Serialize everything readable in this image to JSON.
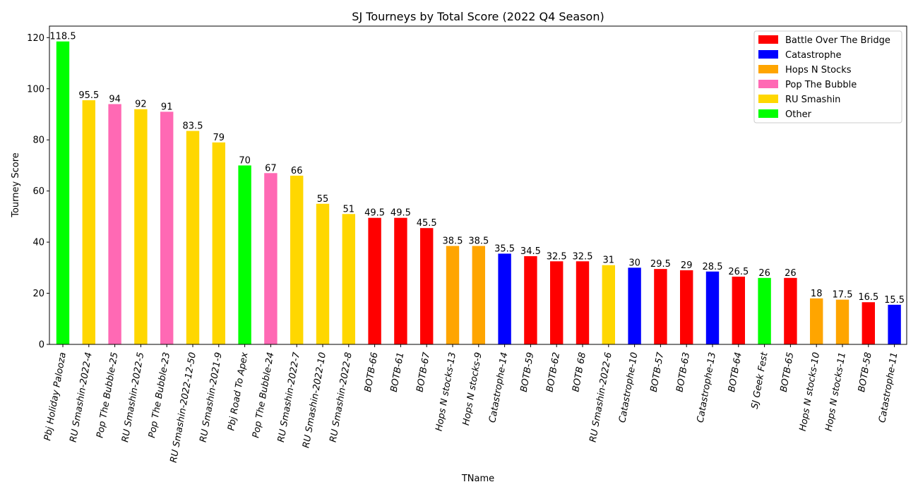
{
  "chart_data": {
    "type": "bar",
    "title": "SJ Tourneys by Total Score (2022 Q4 Season)",
    "xlabel": "TName",
    "ylabel": "Tourney Score",
    "ylim": [
      0,
      124.5
    ],
    "yticks": [
      0,
      20,
      40,
      60,
      80,
      100,
      120
    ],
    "grid": false,
    "legend_placement": "top-right",
    "series_colors": {
      "Battle Over The Bridge": "#ff0000",
      "Catastrophe": "#0000ff",
      "Hops N Stocks": "#ffa500",
      "Pop The Bubble": "#ff69b4",
      "RU Smashin": "#ffd700",
      "Other": "#00ff00"
    },
    "legend": [
      "Battle Over The Bridge",
      "Catastrophe",
      "Hops N Stocks",
      "Pop The Bubble",
      "RU Smashin",
      "Other"
    ],
    "categories": [
      "Pbj Holiday Palooza",
      "RU Smashin-2022-4",
      "Pop The Bubble-25",
      "RU Smashin-2022-5",
      "Pop The Bubble-23",
      "RU Smashin-2022-12-50",
      "RU Smashin-2021-9",
      "Pbj Road To Apex",
      "Pop The Bubble-24",
      "RU Smashin-2022-7",
      "RU Smashin-2022-10",
      "RU Smashin-2022-8",
      "BOTB-66",
      "BOTB-61",
      "BOTB-67",
      "Hops N stocks-13",
      "Hops N stocks-9",
      "Catastrophe-14",
      "BOTB-59",
      "BOTB-62",
      "BOTB 68",
      "RU Smashin-2022-6",
      "Catastrophe-10",
      "BOTB-57",
      "BOTB-63",
      "Catastrophe-13",
      "BOTB-64",
      "SJ Geek Fest",
      "BOTB-65",
      "Hops N stocks-10",
      "Hops N stocks-11",
      "BOTB-58",
      "Catastrophe-11"
    ],
    "values": [
      118.5,
      95.5,
      94,
      92,
      91,
      83.5,
      79,
      70,
      67,
      66,
      55,
      51,
      49.5,
      49.5,
      45.5,
      38.5,
      38.5,
      35.5,
      34.5,
      32.5,
      32.5,
      31,
      30,
      29.5,
      29,
      28.5,
      26.5,
      26,
      26,
      18,
      17.5,
      16.5,
      15.5
    ],
    "value_labels": [
      "118.5",
      "95.5",
      "94",
      "92",
      "91",
      "83.5",
      "79",
      "70",
      "67",
      "66",
      "55",
      "51",
      "49.5",
      "49.5",
      "45.5",
      "38.5",
      "38.5",
      "35.5",
      "34.5",
      "32.5",
      "32.5",
      "31",
      "30",
      "29.5",
      "29",
      "28.5",
      "26.5",
      "26",
      "26",
      "18",
      "17.5",
      "16.5",
      "15.5"
    ],
    "groups": [
      "Other",
      "RU Smashin",
      "Pop The Bubble",
      "RU Smashin",
      "Pop The Bubble",
      "RU Smashin",
      "RU Smashin",
      "Other",
      "Pop The Bubble",
      "RU Smashin",
      "RU Smashin",
      "RU Smashin",
      "Battle Over The Bridge",
      "Battle Over The Bridge",
      "Battle Over The Bridge",
      "Hops N Stocks",
      "Hops N Stocks",
      "Catastrophe",
      "Battle Over The Bridge",
      "Battle Over The Bridge",
      "Battle Over The Bridge",
      "RU Smashin",
      "Catastrophe",
      "Battle Over The Bridge",
      "Battle Over The Bridge",
      "Catastrophe",
      "Battle Over The Bridge",
      "Other",
      "Battle Over The Bridge",
      "Hops N Stocks",
      "Hops N Stocks",
      "Battle Over The Bridge",
      "Catastrophe"
    ]
  }
}
